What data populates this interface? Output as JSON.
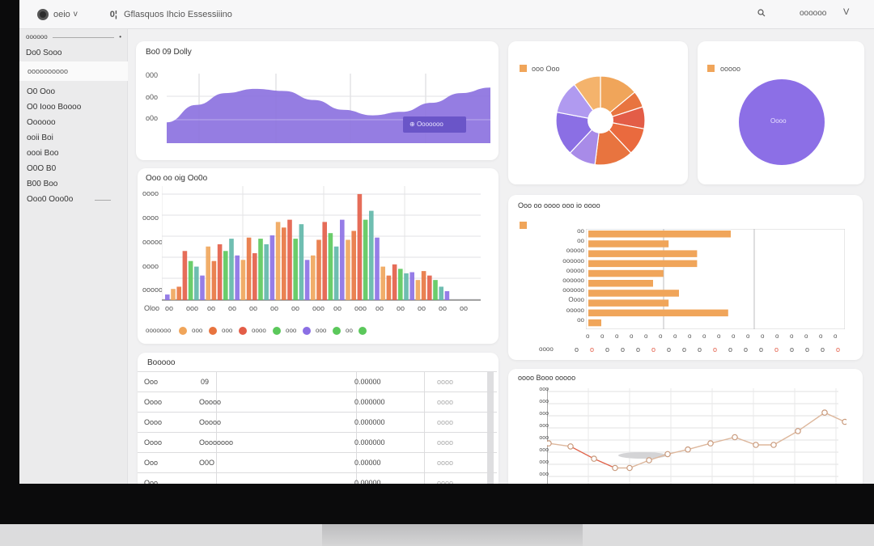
{
  "topbar": {
    "brand": "oeio",
    "chevron": "v",
    "app_icon": "0¦",
    "title": "Gflasquos Ihcio Essessiiino",
    "user": "oooooo",
    "close": "V"
  },
  "sidebar": {
    "header": "oooooo",
    "header_dot": "•",
    "title": "Do0 Sooo",
    "active_item": "oooooooooo",
    "items": [
      "O0 Ooo",
      "O0 Iooo Boooo",
      "Oooooo",
      "ooii Boi",
      "oooi Boo",
      "O0O B0",
      "B00 Boo",
      "Ooo0 Ooo0o"
    ]
  },
  "area_card": {
    "title": "Bo0 09 Dolly",
    "y_labels": [
      "000",
      "o0o",
      "o0o"
    ],
    "badge": "Ooooooo"
  },
  "donut_card": {
    "legend": "ooo Ooo"
  },
  "pie_card": {
    "legend": "ooooo",
    "center_label": "Oooo"
  },
  "bar_card": {
    "title": "Ooo oo oig Oo0o",
    "y_labels": [
      "oooo",
      "oooo",
      "ooooo",
      "oooo",
      "ooooo"
    ],
    "x_labels": [
      "Oloo",
      "oo",
      "ooo",
      "oo",
      "oo",
      "oo",
      "oo",
      "oo",
      "ooo",
      "oo",
      "ooo",
      "oo",
      "oo",
      "oo",
      "oo",
      "oo"
    ],
    "legend": [
      "ooooooo",
      "ooo",
      "ooo",
      "oooo",
      "ooo",
      "ooo",
      "oo"
    ]
  },
  "hbar_card": {
    "title": "Ooo oo oooo ooo io oooo",
    "labels": [
      "oo",
      "oo",
      "ooooo",
      "oooooo",
      "ooooo",
      "oooooo",
      "oooooo",
      "Oooo",
      "ooooo",
      "oo"
    ],
    "x_labels": [
      "o",
      "o",
      "o",
      "o",
      "o",
      "o",
      "o",
      "o",
      "o",
      "o",
      "o",
      "o",
      "o",
      "o",
      "o",
      "o",
      "o",
      "o",
      "o",
      "o",
      "o",
      "o",
      "o",
      "o",
      "o",
      "o",
      "o",
      "o",
      "o",
      "o",
      "o",
      "o",
      "o",
      "o",
      "o",
      "o"
    ],
    "bottom_label": "oooo"
  },
  "table_card": {
    "title": "Booooo",
    "rows": [
      {
        "a": "Ooo",
        "b": "09",
        "c": "0.00000",
        "d": "oooo"
      },
      {
        "a": "Oooo",
        "b": "Ooooo",
        "c": "0.000000",
        "d": "oooo"
      },
      {
        "a": "Oooo",
        "b": "Ooooo",
        "c": "0.000000",
        "d": "oooo"
      },
      {
        "a": "Oooo",
        "b": "Oooooooo",
        "c": "0.000000",
        "d": "oooo"
      },
      {
        "a": "Ooo",
        "b": "O0O",
        "c": "0.00000",
        "d": "oooo"
      },
      {
        "a": "Ooo",
        "b": "",
        "c": "0.00000",
        "d": "oooo"
      }
    ]
  },
  "line_card": {
    "title": "oooo Booo ooooo",
    "y_labels": [
      "ooo",
      "ooo",
      "ooo",
      "ooo",
      "ooo",
      "ooo",
      "ooo",
      "ooo"
    ]
  },
  "chart_data": [
    {
      "type": "area",
      "title": "Bo0 09 Dolly",
      "values": [
        0.3,
        0.55,
        0.72,
        0.78,
        0.75,
        0.62,
        0.48,
        0.4,
        0.45,
        0.58,
        0.72,
        0.8
      ]
    },
    {
      "type": "pie",
      "slices": [
        {
          "value": 14,
          "color": "#f0a55a"
        },
        {
          "value": 6,
          "color": "#e8743f"
        },
        {
          "value": 8,
          "color": "#e35d47"
        },
        {
          "value": 10,
          "color": "#ea6a3e"
        },
        {
          "value": 14,
          "color": "#e8743f"
        },
        {
          "value": 10,
          "color": "#a88be8"
        },
        {
          "value": 16,
          "color": "#8b6fe4"
        },
        {
          "value": 12,
          "color": "#b09af0"
        },
        {
          "value": 10,
          "color": "#f4b36c"
        }
      ]
    },
    {
      "type": "pie",
      "slices": [
        {
          "value": 100,
          "color": "#8c6fe6"
        }
      ]
    },
    {
      "type": "bar",
      "series_colors": [
        "#8b6fe4",
        "#f0a55a",
        "#e8743f",
        "#e35d47",
        "#5bc85b",
        "#5fb7a8"
      ],
      "values": [
        0.05,
        0.1,
        0.12,
        0.44,
        0.35,
        0.3,
        0.22,
        0.48,
        0.35,
        0.5,
        0.44,
        0.55,
        0.4,
        0.36,
        0.56,
        0.42,
        0.55,
        0.5,
        0.58,
        0.7,
        0.65,
        0.72,
        0.55,
        0.68,
        0.36,
        0.4,
        0.54,
        0.7,
        0.6,
        0.48,
        0.72,
        0.54,
        0.62,
        0.95,
        0.72,
        0.8,
        0.56,
        0.3,
        0.22,
        0.32,
        0.28,
        0.24,
        0.25,
        0.18,
        0.26,
        0.22,
        0.18,
        0.12,
        0.08
      ]
    },
    {
      "type": "bar",
      "orientation": "horizontal",
      "values": [
        0.55,
        0.31,
        0.42,
        0.42,
        0.29,
        0.25,
        0.35,
        0.31,
        0.54,
        0.05
      ],
      "color": "#f0a55a"
    },
    {
      "type": "line",
      "values": [
        0.42,
        0.38,
        0.22,
        0.1,
        0.1,
        0.2,
        0.28,
        0.34,
        0.42,
        0.5,
        0.4,
        0.4,
        0.58,
        0.82,
        0.7
      ],
      "color": "#ddb79c"
    }
  ]
}
